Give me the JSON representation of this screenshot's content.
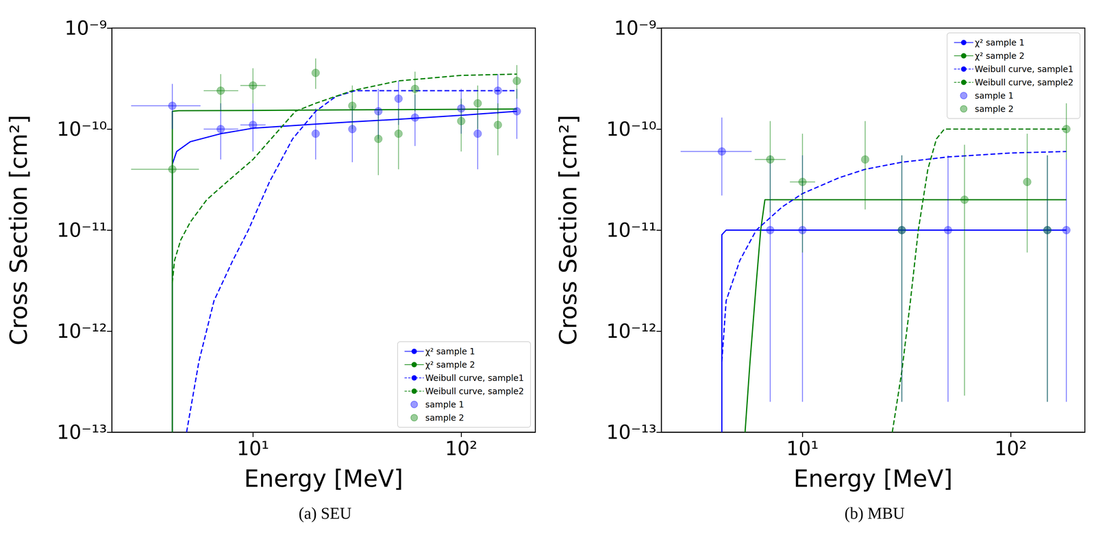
{
  "chart_data": [
    {
      "type": "scatter",
      "title": "(a) SEU",
      "x_label": "Energy [MeV]",
      "y_label": "Cross Section [cm²]",
      "log": true,
      "grid": false,
      "legend": "lower right",
      "xlim": [
        2.1,
        227
      ],
      "ylim": [
        1e-13,
        1e-09
      ],
      "xticks": [
        {
          "value": 10,
          "label": "10¹"
        },
        {
          "value": 100,
          "label": "10²"
        }
      ],
      "yticks": [
        {
          "value": 1e-13,
          "label": "10⁻¹³"
        },
        {
          "value": 1e-12,
          "label": "10⁻¹²"
        },
        {
          "value": 1e-11,
          "label": "10⁻¹¹"
        },
        {
          "value": 1e-10,
          "label": "10⁻¹⁰"
        },
        {
          "value": 1e-09,
          "label": "10⁻⁹"
        }
      ],
      "series": [
        {
          "name": "χ² sample 1",
          "type": "line",
          "line_style": "solid",
          "color": "#0000ff",
          "x": [
            4.1,
            4.1,
            4.3,
            5,
            7,
            10,
            20,
            30,
            50,
            100,
            185
          ],
          "values": [
            1e-13,
            4.5e-11,
            6e-11,
            7.5e-11,
            9e-11,
            1.02e-10,
            1.12e-10,
            1.18e-10,
            1.25e-10,
            1.37e-10,
            1.5e-10
          ]
        },
        {
          "name": "χ² sample 2",
          "type": "line",
          "line_style": "solid",
          "color": "#008000",
          "x": [
            4.1,
            4.1,
            4.4,
            10,
            30,
            100,
            185
          ],
          "values": [
            1e-13,
            1.5e-10,
            1.52e-10,
            1.53e-10,
            1.55e-10,
            1.57e-10,
            1.58e-10
          ]
        },
        {
          "name": "Weibull curve, sample1",
          "type": "line",
          "line_style": "dashed",
          "color": "#0000ff",
          "x": [
            4.8,
            5.5,
            6.5,
            8,
            9.5,
            12,
            15.5,
            20,
            25,
            31,
            185
          ],
          "values": [
            1e-13,
            5e-13,
            2e-12,
            5e-12,
            1e-11,
            3e-11,
            8e-11,
            1.5e-10,
            2.1e-10,
            2.4e-10,
            2.4e-10
          ]
        },
        {
          "name": "Weibull curve, sample2",
          "type": "line",
          "line_style": "dashed",
          "color": "#008000",
          "x": [
            4.1,
            4.2,
            4.5,
            5,
            6,
            7.5,
            10,
            14,
            16,
            20,
            30,
            50,
            100,
            185
          ],
          "values": [
            3e-12,
            5e-12,
            8e-12,
            1.2e-11,
            2e-11,
            3e-11,
            5e-11,
            1.1e-10,
            1.5e-10,
            1.8e-10,
            2.4e-10,
            3e-10,
            3.4e-10,
            3.5e-10
          ]
        },
        {
          "name": "sample 1",
          "type": "scatter",
          "marker": "circle",
          "color": "#0000ff",
          "x": [
            4.1,
            7,
            10,
            20,
            30,
            40,
            50,
            60,
            100,
            120,
            150,
            185
          ],
          "values": [
            1.7e-10,
            1e-10,
            1.1e-10,
            9e-11,
            1e-10,
            1.5e-10,
            2e-10,
            1.3e-10,
            1.6e-10,
            9e-11,
            2.4e-10,
            1.5e-10
          ],
          "x_low": [
            2.6,
            5.8,
            8.7,
            null,
            null,
            null,
            null,
            null,
            null,
            null,
            null,
            null
          ],
          "x_high": [
            5.6,
            8.5,
            11.5,
            null,
            null,
            null,
            null,
            null,
            null,
            null,
            null,
            null
          ],
          "y_low": [
            1e-10,
            5e-11,
            6e-11,
            5e-11,
            4.7e-11,
            8e-11,
            1.1e-10,
            6.8e-11,
            9e-11,
            4e-11,
            1.4e-10,
            8e-11
          ],
          "y_high": [
            2.8e-10,
            1.8e-10,
            1.8e-10,
            1.6e-10,
            1.7e-10,
            2.5e-10,
            3e-10,
            2.2e-10,
            2.5e-10,
            1.6e-10,
            3.5e-10,
            2.5e-10
          ]
        },
        {
          "name": "sample 2",
          "type": "scatter",
          "marker": "circle",
          "color": "#008000",
          "x": [
            4.1,
            7,
            10,
            20,
            30,
            40,
            50,
            60,
            100,
            120,
            150,
            185
          ],
          "values": [
            4e-11,
            2.4e-10,
            2.7e-10,
            3.6e-10,
            1.7e-10,
            8e-11,
            9e-11,
            2.5e-10,
            1.2e-10,
            1.8e-10,
            1.1e-10,
            3e-10
          ],
          "x_low": [
            2.6,
            5.8,
            8.7,
            null,
            null,
            null,
            null,
            null,
            null,
            null,
            null,
            null
          ],
          "x_high": [
            5.5,
            8.5,
            11.5,
            null,
            null,
            null,
            null,
            null,
            null,
            null,
            null,
            null
          ],
          "y_low": [
            1.1e-11,
            1.5e-10,
            1.8e-10,
            2.5e-10,
            1e-10,
            3.5e-11,
            4e-11,
            1.5e-10,
            6e-11,
            1e-10,
            5.5e-11,
            2e-10
          ],
          "y_high": [
            1e-10,
            3.5e-10,
            4e-10,
            5e-10,
            2.7e-10,
            1.5e-10,
            1.6e-10,
            3.7e-10,
            2e-10,
            2.7e-10,
            1.8e-10,
            4.3e-10
          ]
        }
      ]
    },
    {
      "type": "scatter",
      "title": "(b) MBU",
      "x_label": "Energy [MeV]",
      "y_label": "Cross Section [cm²]",
      "log": true,
      "grid": false,
      "legend": "upper right",
      "xlim": [
        2.1,
        227
      ],
      "ylim": [
        1e-13,
        1e-09
      ],
      "xticks": [
        {
          "value": 10,
          "label": "10¹"
        },
        {
          "value": 100,
          "label": "10²"
        }
      ],
      "yticks": [
        {
          "value": 1e-13,
          "label": "10⁻¹³"
        },
        {
          "value": 1e-12,
          "label": "10⁻¹²"
        },
        {
          "value": 1e-11,
          "label": "10⁻¹¹"
        },
        {
          "value": 1e-10,
          "label": "10⁻¹⁰"
        },
        {
          "value": 1e-09,
          "label": "10⁻⁹"
        }
      ],
      "series": [
        {
          "name": "χ² sample 1",
          "type": "line",
          "line_style": "solid",
          "color": "#0000ff",
          "x": [
            4.1,
            4.1,
            4.3,
            185
          ],
          "values": [
            1e-13,
            9e-12,
            1e-11,
            1e-11
          ]
        },
        {
          "name": "χ² sample 2",
          "type": "line",
          "line_style": "solid",
          "color": "#008000",
          "x": [
            5.3,
            5.6,
            6,
            6.3,
            6.6,
            185
          ],
          "values": [
            1e-13,
            5e-13,
            3e-12,
            1e-11,
            2e-11,
            2e-11
          ]
        },
        {
          "name": "Weibull curve, sample1",
          "type": "line",
          "line_style": "dashed",
          "color": "#0000ff",
          "x": [
            4.1,
            4.3,
            5,
            6,
            8,
            10,
            15,
            20,
            30,
            50,
            100,
            185
          ],
          "values": [
            5e-13,
            2e-12,
            5e-12,
            1e-11,
            1.7e-11,
            2.3e-11,
            3.3e-11,
            4e-11,
            4.7e-11,
            5.3e-11,
            5.8e-11,
            6e-11
          ]
        },
        {
          "name": "Weibull curve, sample2",
          "type": "line",
          "line_style": "dashed",
          "color": "#008000",
          "x": [
            27,
            30,
            33,
            36,
            40,
            44,
            48,
            185
          ],
          "values": [
            1e-13,
            4e-13,
            2e-12,
            1e-11,
            4e-11,
            8e-11,
            1e-10,
            1e-10
          ]
        },
        {
          "name": "sample 1",
          "type": "scatter",
          "marker": "circle",
          "color": "#0000ff",
          "x": [
            4.1,
            7,
            10,
            30,
            50,
            150,
            185
          ],
          "values": [
            6e-11,
            1e-11,
            1e-11,
            1e-11,
            1e-11,
            1e-11,
            1e-11
          ],
          "x_low": [
            2.6,
            null,
            null,
            null,
            null,
            null,
            null
          ],
          "x_high": [
            5.7,
            null,
            null,
            null,
            null,
            null,
            null
          ],
          "y_low": [
            2.2e-11,
            2e-13,
            2e-13,
            2e-13,
            2e-13,
            2e-13,
            2e-13
          ],
          "y_high": [
            1.3e-10,
            5.5e-11,
            5.5e-11,
            5.5e-11,
            5.5e-11,
            5.5e-11,
            5e-11
          ]
        },
        {
          "name": "sample 2",
          "type": "scatter",
          "marker": "circle",
          "color": "#008000",
          "x": [
            7,
            10,
            20,
            30,
            60,
            120,
            150,
            185
          ],
          "values": [
            5e-11,
            3e-11,
            5e-11,
            1e-11,
            2e-11,
            3e-11,
            1e-11,
            1e-10
          ],
          "x_low": [
            5.9,
            8.7,
            null,
            null,
            null,
            null,
            null,
            null
          ],
          "x_high": [
            8.3,
            11.5,
            null,
            null,
            null,
            null,
            null,
            null
          ],
          "y_low": [
            1.5e-11,
            6e-12,
            1.6e-11,
            2e-13,
            2.3e-13,
            6e-12,
            2e-13,
            5e-11
          ],
          "y_high": [
            1.2e-10,
            9e-11,
            1.2e-10,
            5.5e-11,
            7e-11,
            9e-11,
            5.5e-11,
            1.8e-10
          ]
        }
      ]
    }
  ]
}
